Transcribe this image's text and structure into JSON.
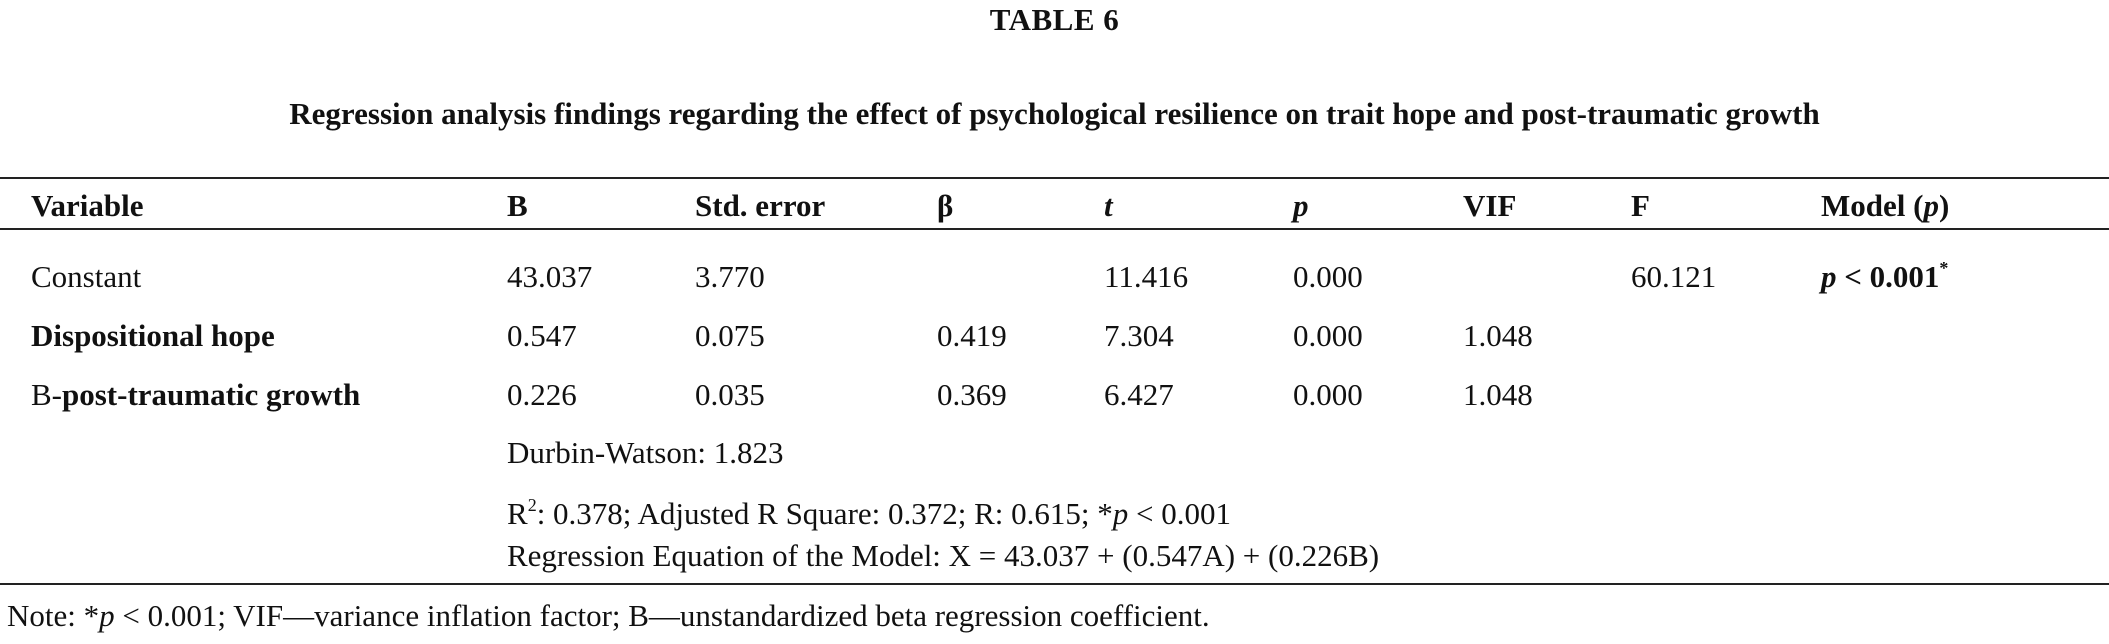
{
  "table_label": "TABLE 6",
  "caption": "Regression analysis findings regarding the effect of psychological resilience on trait hope and post-traumatic growth",
  "headers": {
    "variable": "Variable",
    "b": "B",
    "std_error": "Std. error",
    "beta": "β",
    "t": "t",
    "p": "p",
    "vif": "VIF",
    "f": "F",
    "model_p_prefix": "Model (",
    "model_p_symbol": "p",
    "model_p_suffix": ")"
  },
  "rows": [
    {
      "variable": "Constant",
      "b": "43.037",
      "std_error": "3.770",
      "beta": "",
      "t": "11.416",
      "p": "0.000",
      "vif": "",
      "f": "60.121",
      "model_p_symbol": "p",
      "model_p_value": " < 0.001",
      "model_p_marker": "*"
    },
    {
      "variable": "Dispositional hope",
      "b": "0.547",
      "std_error": "0.075",
      "beta": "0.419",
      "t": "7.304",
      "p": "0.000",
      "vif": "1.048"
    },
    {
      "variable_prefix": "B-",
      "variable_bold": "post-traumatic growth",
      "b": "0.226",
      "std_error": "0.035",
      "beta": "0.369",
      "t": "6.427",
      "p": "0.000",
      "vif": "1.048"
    }
  ],
  "stats": {
    "durbin_watson": "Durbin-Watson: 1.823",
    "r2_prefix": "R",
    "r2_sup": "2",
    "r2_rest": ": 0.378; Adjusted R Square: 0.372; R: 0.615; *",
    "r2_p_symbol": "p",
    "r2_p_value": " < 0.001",
    "equation": "Regression Equation of the Model: X = 43.037 + (0.547A) + (0.226B)"
  },
  "note": {
    "prefix": "Note: *",
    "p_symbol": "p",
    "rest": " < 0.001; VIF—variance inflation factor; B—unstandardized beta regression coefficient."
  }
}
